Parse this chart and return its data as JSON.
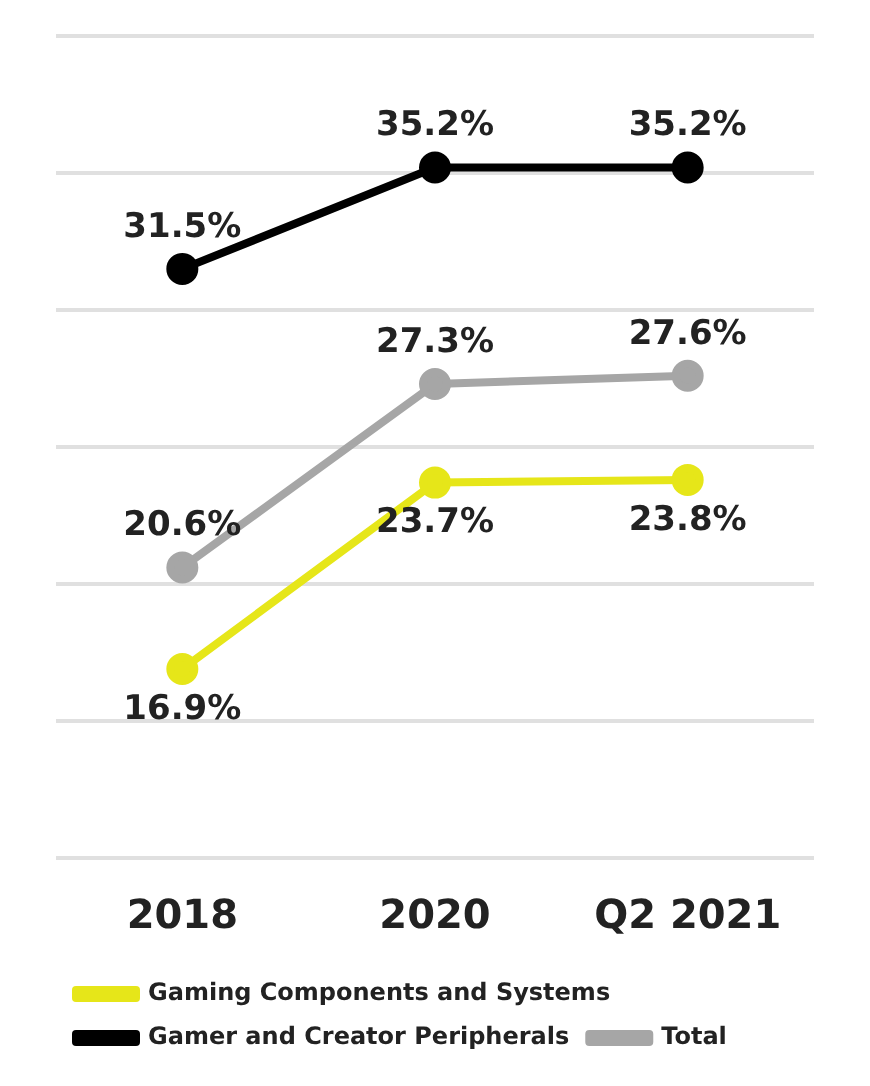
{
  "chart_data": {
    "type": "line",
    "categories": [
      "2018",
      "2020",
      "Q2 2021"
    ],
    "series": [
      {
        "name": "Gaming Components and Systems",
        "color": "#e6e619",
        "values": [
          16.9,
          23.7,
          23.8
        ],
        "value_labels": [
          "16.9%",
          "23.7%",
          "23.8%"
        ]
      },
      {
        "name": "Gamer and Creator Peripherals",
        "color": "#000000",
        "values": [
          31.5,
          35.2,
          35.2
        ],
        "value_labels": [
          "31.5%",
          "35.2%",
          "35.2%"
        ]
      },
      {
        "name": "Total",
        "color": "#a6a6a6",
        "values": [
          20.6,
          27.3,
          27.6
        ],
        "value_labels": [
          "20.6%",
          "27.3%",
          "27.6%"
        ]
      }
    ],
    "tick_labels": "x",
    "grid": "y",
    "legend": "bottom",
    "marker": "circle",
    "line_style": "solid"
  }
}
